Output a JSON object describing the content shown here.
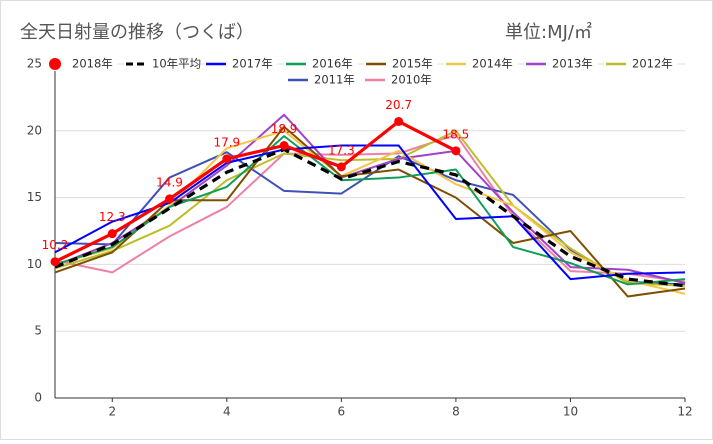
{
  "chart_data": {
    "type": "line",
    "title": "全天日射量の推移（つくば）",
    "unit": "単位:MJ/㎡",
    "x": [
      1,
      2,
      3,
      4,
      5,
      6,
      7,
      8,
      9,
      10,
      11,
      12
    ],
    "xlim": [
      1,
      12
    ],
    "xticks": [
      2,
      4,
      6,
      8,
      10,
      12
    ],
    "ylim": [
      0,
      25
    ],
    "yticks": [
      0,
      5,
      10,
      15,
      20,
      25
    ],
    "grid": true,
    "series": [
      {
        "name": "2018年",
        "color": "#ff0000",
        "markers": true,
        "data_labels": true,
        "values": [
          10.2,
          12.3,
          14.9,
          17.9,
          18.9,
          17.3,
          20.7,
          18.5,
          null,
          null,
          null,
          null
        ]
      },
      {
        "name": "10年平均",
        "color": "#000000",
        "line_style": "dashed",
        "values": [
          9.8,
          11.5,
          14.2,
          16.9,
          18.6,
          16.4,
          17.7,
          16.7,
          13.6,
          10.6,
          8.9,
          8.4
        ]
      },
      {
        "name": "2017年",
        "color": "#0000ff",
        "values": [
          10.9,
          13.2,
          14.6,
          17.6,
          18.6,
          18.9,
          18.9,
          13.4,
          13.6,
          8.9,
          9.3,
          9.4
        ]
      },
      {
        "name": "2016年",
        "color": "#0f9d58",
        "values": [
          10.0,
          11.3,
          14.3,
          15.8,
          19.6,
          16.3,
          16.5,
          17.1,
          11.3,
          10.1,
          8.5,
          8.9
        ]
      },
      {
        "name": "2015年",
        "color": "#7f4f00",
        "values": [
          9.4,
          10.9,
          14.8,
          14.8,
          20.3,
          16.6,
          17.1,
          15.0,
          11.6,
          12.5,
          7.6,
          8.2
        ]
      },
      {
        "name": "2014年",
        "color": "#f4c542",
        "values": [
          10.0,
          11.2,
          14.4,
          18.7,
          20.0,
          16.6,
          18.5,
          16.0,
          14.4,
          10.9,
          8.8,
          7.8
        ]
      },
      {
        "name": "2013年",
        "color": "#a142c8",
        "values": [
          9.9,
          11.6,
          14.3,
          17.4,
          21.2,
          16.5,
          17.9,
          18.5,
          13.9,
          9.8,
          9.6,
          8.6
        ]
      },
      {
        "name": "2012年",
        "color": "#bdbd2a",
        "values": [
          9.7,
          11.0,
          12.9,
          16.3,
          18.3,
          17.8,
          17.9,
          20.0,
          14.4,
          11.2,
          8.6,
          8.4
        ]
      },
      {
        "name": "2011年",
        "color": "#3f51b5",
        "values": [
          11.6,
          11.5,
          16.5,
          18.4,
          15.5,
          15.3,
          18.1,
          16.3,
          15.2,
          11.1,
          8.7,
          8.5
        ]
      },
      {
        "name": "2010年",
        "color": "#f07fa8",
        "values": [
          10.3,
          9.4,
          12.1,
          14.3,
          18.3,
          18.2,
          18.3,
          19.7,
          13.6,
          9.5,
          9.3,
          8.7
        ]
      }
    ]
  }
}
